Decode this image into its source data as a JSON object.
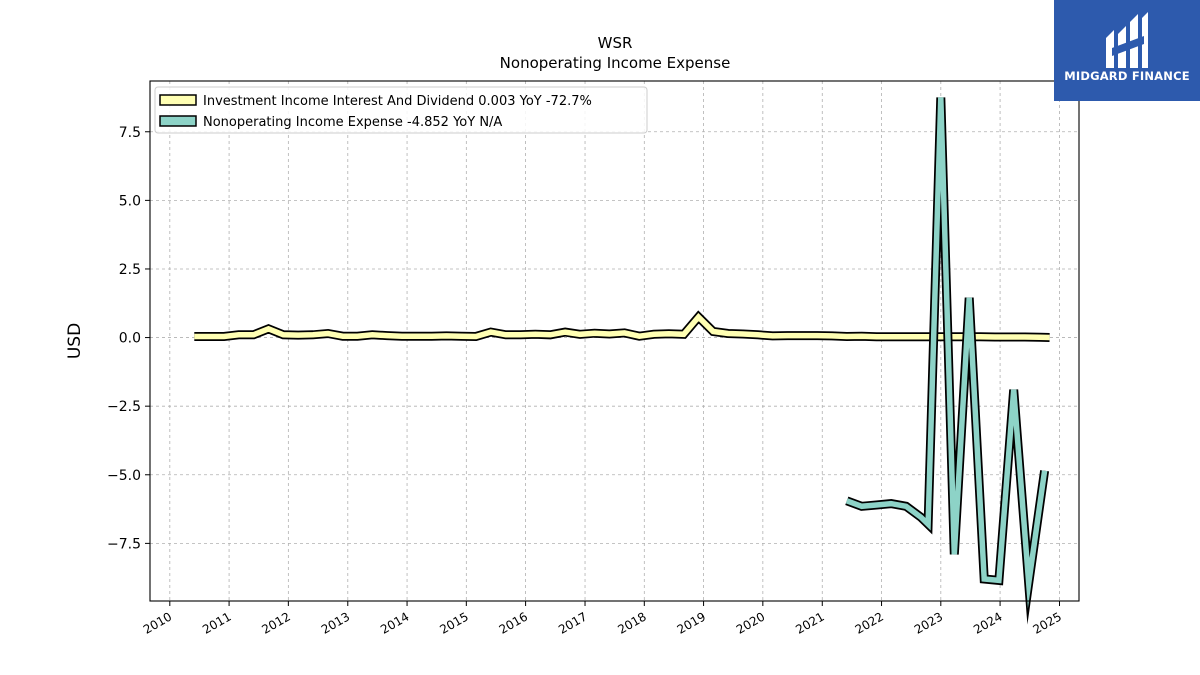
{
  "brand": {
    "name": "MIDGARD FINANCE",
    "color": "#2d5aad"
  },
  "chart_data": {
    "type": "line",
    "title": "WSR",
    "subtitle": "Nonoperating Income Expense",
    "ylabel": "USD",
    "xlabel": "",
    "xlim": [
      "2009-09-01",
      "2025-05-01"
    ],
    "ylim": [
      -9.6,
      9.35
    ],
    "yticks": [
      -7.5,
      -5.0,
      -2.5,
      0.0,
      2.5,
      5.0,
      7.5
    ],
    "ytick_labels": [
      "−7.5",
      "−5.0",
      "−2.5",
      "0.0",
      "2.5",
      "5.0",
      "7.5"
    ],
    "xticks": [
      "2010",
      "2011",
      "2012",
      "2013",
      "2014",
      "2015",
      "2016",
      "2017",
      "2018",
      "2019",
      "2020",
      "2021",
      "2022",
      "2023",
      "2024",
      "2025"
    ],
    "grid": true,
    "legend_position": "top-left",
    "series": [
      {
        "name": "Investment Income Interest And Dividend",
        "legend_label": "Investment Income Interest And Dividend  0.003 YoY -72.7%",
        "color": "#ffffb3",
        "points": [
          [
            "2010-06-01",
            0.04
          ],
          [
            "2010-09-01",
            0.04
          ],
          [
            "2010-12-01",
            0.04
          ],
          [
            "2011-03-01",
            0.1
          ],
          [
            "2011-06-01",
            0.1
          ],
          [
            "2011-09-01",
            0.32
          ],
          [
            "2011-12-01",
            0.1
          ],
          [
            "2012-03-01",
            0.09
          ],
          [
            "2012-06-01",
            0.1
          ],
          [
            "2012-09-01",
            0.15
          ],
          [
            "2012-12-01",
            0.05
          ],
          [
            "2013-03-01",
            0.05
          ],
          [
            "2013-06-01",
            0.1
          ],
          [
            "2013-09-01",
            0.07
          ],
          [
            "2013-12-01",
            0.05
          ],
          [
            "2014-03-01",
            0.05
          ],
          [
            "2014-06-01",
            0.05
          ],
          [
            "2014-09-01",
            0.06
          ],
          [
            "2014-12-01",
            0.05
          ],
          [
            "2015-03-01",
            0.04
          ],
          [
            "2015-06-01",
            0.2
          ],
          [
            "2015-09-01",
            0.1
          ],
          [
            "2015-12-01",
            0.1
          ],
          [
            "2016-03-01",
            0.12
          ],
          [
            "2016-06-01",
            0.1
          ],
          [
            "2016-09-01",
            0.2
          ],
          [
            "2016-12-01",
            0.12
          ],
          [
            "2017-03-01",
            0.16
          ],
          [
            "2017-06-01",
            0.13
          ],
          [
            "2017-09-01",
            0.17
          ],
          [
            "2017-12-01",
            0.05
          ],
          [
            "2018-03-01",
            0.12
          ],
          [
            "2018-06-01",
            0.14
          ],
          [
            "2018-09-01",
            0.12
          ],
          [
            "2018-12-01",
            0.75
          ],
          [
            "2019-03-01",
            0.22
          ],
          [
            "2019-06-01",
            0.15
          ],
          [
            "2019-09-01",
            0.13
          ],
          [
            "2019-12-01",
            0.1
          ],
          [
            "2020-03-01",
            0.06
          ],
          [
            "2020-06-01",
            0.07
          ],
          [
            "2020-09-01",
            0.07
          ],
          [
            "2020-12-01",
            0.07
          ],
          [
            "2021-03-01",
            0.06
          ],
          [
            "2021-06-01",
            0.04
          ],
          [
            "2021-09-01",
            0.05
          ],
          [
            "2021-12-01",
            0.03
          ],
          [
            "2022-03-01",
            0.03
          ],
          [
            "2022-06-01",
            0.03
          ],
          [
            "2022-09-01",
            0.03
          ],
          [
            "2022-12-01",
            0.03
          ],
          [
            "2023-03-01",
            0.03
          ],
          [
            "2023-06-01",
            0.03
          ],
          [
            "2023-09-01",
            0.03
          ],
          [
            "2023-12-01",
            0.02
          ],
          [
            "2024-03-01",
            0.02
          ],
          [
            "2024-06-01",
            0.02
          ],
          [
            "2024-09-01",
            0.01
          ],
          [
            "2024-11-01",
            0.003
          ]
        ]
      },
      {
        "name": "Nonoperating Income Expense",
        "legend_label": "Nonoperating Income Expense  -4.852 YoY N/A",
        "color": "#8dd3c7",
        "points": [
          [
            "2021-06-01",
            -5.95
          ],
          [
            "2021-09-01",
            -6.15
          ],
          [
            "2021-12-01",
            -6.1
          ],
          [
            "2022-03-01",
            -6.05
          ],
          [
            "2022-06-01",
            -6.15
          ],
          [
            "2022-09-01",
            -6.55
          ],
          [
            "2022-10-15",
            -6.8
          ],
          [
            "2023-01-01",
            8.75
          ],
          [
            "2023-03-25",
            -7.9
          ],
          [
            "2023-06-25",
            1.45
          ],
          [
            "2023-09-25",
            -8.8
          ],
          [
            "2023-12-25",
            -8.85
          ],
          [
            "2024-03-25",
            -1.9
          ],
          [
            "2024-06-25",
            -8.95
          ],
          [
            "2024-10-01",
            -4.85
          ]
        ]
      }
    ]
  }
}
